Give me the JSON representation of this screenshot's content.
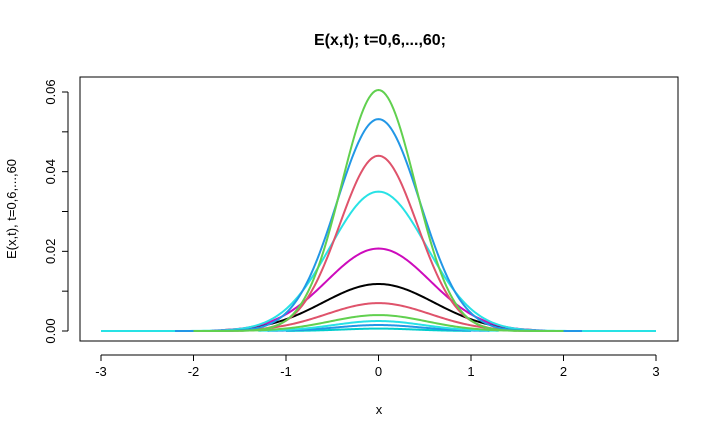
{
  "chart_data": {
    "type": "line",
    "title": "E(x,t); t=0,6,...,60;",
    "xlabel": "x",
    "ylabel": "E(x,t), t=0,6,...,60",
    "xlim": [
      -3,
      3
    ],
    "ylim": [
      0,
      0.06
    ],
    "xticks": [
      -3,
      -2,
      -1,
      0,
      1,
      2,
      3
    ],
    "xtick_labels": [
      "-3",
      "-2",
      "-1",
      "0",
      "1",
      "2",
      "3"
    ],
    "yticks": [
      0,
      0.02,
      0.04,
      0.06
    ],
    "ytick_labels": [
      "0.00",
      "0.02",
      "0.04",
      "0.06"
    ],
    "grid": false,
    "legend": "none",
    "series": [
      {
        "color": "#00CDCD",
        "peak": 0.0006,
        "sigma": 0.4,
        "xmin": -1.0,
        "xmax": 1.0
      },
      {
        "color": "#2297E6",
        "peak": 0.0015,
        "sigma": 0.45,
        "xmin": -1.2,
        "xmax": 1.2
      },
      {
        "color": "#28E2E5",
        "peak": 0.0025,
        "sigma": 0.48,
        "xmin": -1.3,
        "xmax": 1.3
      },
      {
        "color": "#61D04F",
        "peak": 0.004,
        "sigma": 0.52,
        "xmin": -1.5,
        "xmax": 1.5
      },
      {
        "color": "#DF536B",
        "peak": 0.007,
        "sigma": 0.56,
        "xmin": -1.6,
        "xmax": 1.6
      },
      {
        "color": "#000000",
        "peak": 0.0118,
        "sigma": 0.6,
        "xmin": -1.7,
        "xmax": 1.7
      },
      {
        "color": "#CD0BBC",
        "peak": 0.0207,
        "sigma": 0.56,
        "xmin": -1.8,
        "xmax": 1.8
      },
      {
        "color": "#28E2E5",
        "peak": 0.035,
        "sigma": 0.52,
        "xmin": -3.0,
        "xmax": 3.0
      },
      {
        "color": "#DF536B",
        "peak": 0.044,
        "sigma": 0.42,
        "xmin": -2.1,
        "xmax": 2.1
      },
      {
        "color": "#2297E6",
        "peak": 0.0532,
        "sigma": 0.45,
        "xmin": -2.2,
        "xmax": 2.2
      },
      {
        "color": "#61D04F",
        "peak": 0.0605,
        "sigma": 0.4,
        "xmin": -2.0,
        "xmax": 2.0
      }
    ]
  }
}
